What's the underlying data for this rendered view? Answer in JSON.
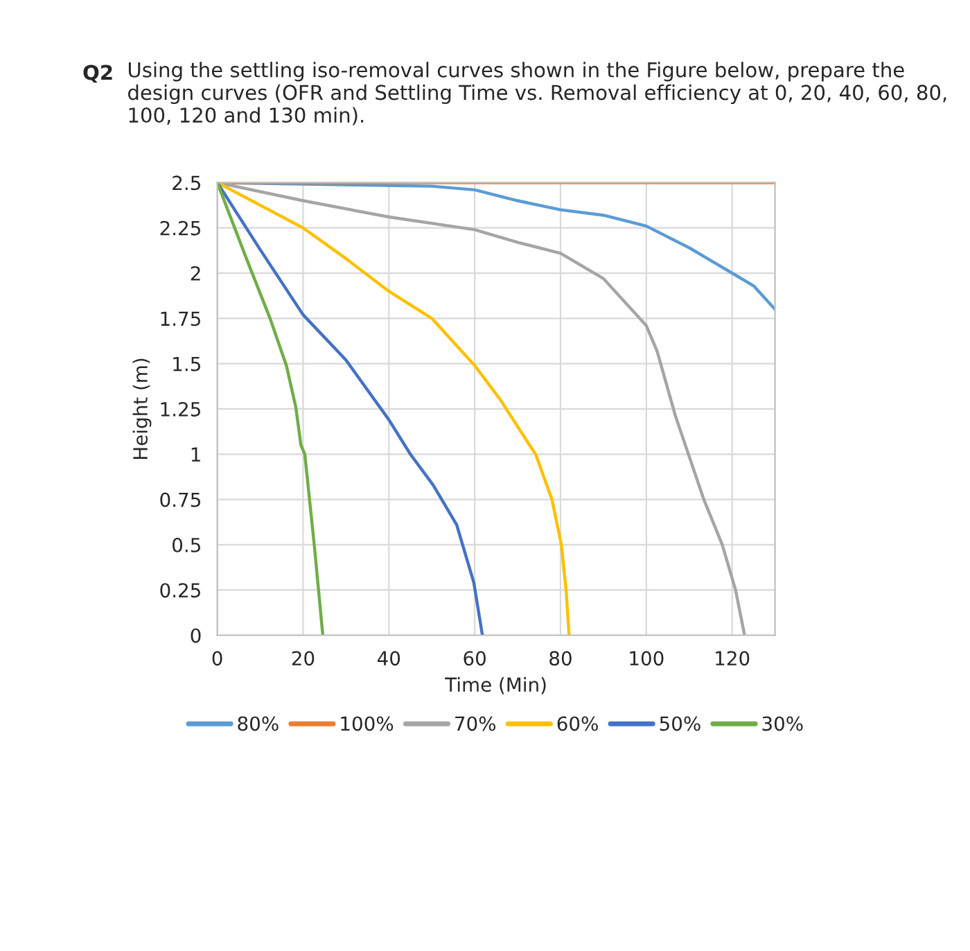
{
  "chart_data": {
    "type": "line",
    "title": "Using the settling iso-removal curves shown in the Figure below, prepare the design curves (OFR and Settling Time vs. Removal efficiency at 0, 20, 40, 60, 80, 100, 120 and 130 min).",
    "annotations": [
      "Q2"
    ],
    "xlabel": "Time (Min)",
    "ylabel": "Height (m)",
    "series": [
      {
        "name": "80%",
        "color": "#5b9bd5",
        "x": [
          0,
          50,
          60,
          70,
          80,
          90,
          100,
          110,
          120,
          125,
          130
        ],
        "values": [
          2.5,
          2.48,
          2.46,
          2.4,
          2.35,
          2.32,
          2.26,
          2.14,
          2.0,
          1.93,
          1.8
        ]
      },
      {
        "name": "100%",
        "color": "#ed7d31",
        "x": [
          0,
          130
        ],
        "values": [
          2.5,
          2.5
        ]
      },
      {
        "name": "70%",
        "color": "#a5a5a5",
        "x": [
          0,
          20,
          40,
          60,
          70,
          80,
          90,
          100,
          102.5,
          106.8,
          113.4,
          117.7,
          120.8,
          122.9
        ],
        "values": [
          2.5,
          2.4,
          2.31,
          2.24,
          2.17,
          2.11,
          1.97,
          1.71,
          1.57,
          1.21,
          0.75,
          0.5,
          0.25,
          0
        ]
      },
      {
        "name": "60%",
        "color": "#ffc000",
        "x": [
          0,
          20,
          30,
          40,
          50,
          60,
          66,
          72.8,
          74.2,
          78,
          80.2,
          81.3,
          82
        ],
        "values": [
          2.5,
          2.25,
          2.08,
          1.9,
          1.75,
          1.49,
          1.3,
          1.05,
          1.0,
          0.75,
          0.5,
          0.25,
          0
        ]
      },
      {
        "name": "50%",
        "color": "#4472c4",
        "x": [
          0,
          10,
          20,
          30,
          40,
          45,
          50.3,
          55.8,
          59.8,
          61.8
        ],
        "values": [
          2.5,
          2.13,
          1.77,
          1.52,
          1.19,
          1.0,
          0.83,
          0.61,
          0.29,
          0
        ]
      },
      {
        "name": "30%",
        "color": "#70ad47",
        "x": [
          0,
          6.8,
          12.3,
          16.1,
          18.3,
          19.5,
          20.4,
          22.6,
          24.6
        ],
        "values": [
          2.5,
          2.08,
          1.75,
          1.49,
          1.26,
          1.05,
          1.0,
          0.5,
          0
        ]
      }
    ],
    "xlim": [
      0,
      130
    ],
    "xticks": [
      0,
      20,
      40,
      60,
      80,
      100,
      120
    ],
    "ylim": [
      0,
      2.5
    ],
    "yticks": [
      0,
      0.25,
      0.5,
      0.75,
      1,
      1.25,
      1.5,
      1.75,
      2,
      2.25,
      2.5
    ],
    "grid": true,
    "legend": "bottom",
    "marker": "none",
    "line_style": "solid"
  }
}
